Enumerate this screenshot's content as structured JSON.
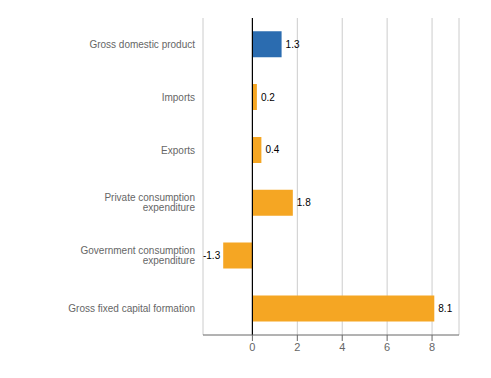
{
  "chart_data": {
    "type": "bar",
    "orientation": "horizontal",
    "categories": [
      "Gross fixed capital formation",
      "Government consumption expenditure",
      "Private consumption expenditure",
      "Exports",
      "Imports",
      "Gross domestic product"
    ],
    "values": [
      8.1,
      -1.3,
      1.8,
      0.4,
      0.2,
      1.3
    ],
    "colors": [
      "#f5a623",
      "#f5a623",
      "#f5a623",
      "#f5a623",
      "#f5a623",
      "#2b6cb0"
    ],
    "xlim": [
      -2.2,
      9.2
    ],
    "xticks": [
      0,
      2,
      4,
      6,
      8
    ],
    "grid": true,
    "data_labels": true
  }
}
